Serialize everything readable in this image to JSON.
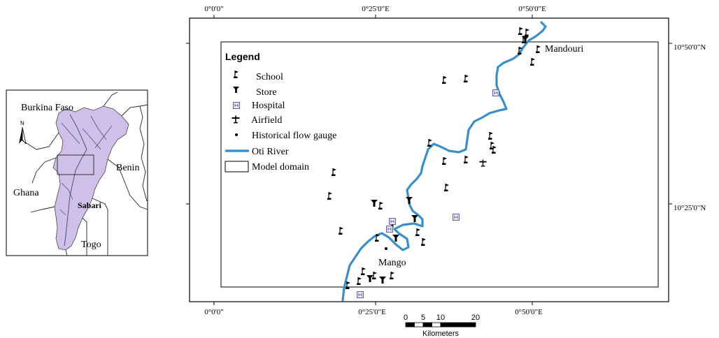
{
  "colors": {
    "river": "#3a8fc8",
    "inset_fill": "#cfc0ea",
    "inset_stream": "#4d4d8c",
    "hospital": "#5a5a9e",
    "frame": "#000000"
  },
  "inset": {
    "labels": {
      "burkina_faso": "Burkina Faso",
      "benin": "Benin",
      "ghana": "Ghana",
      "togo": "Togo",
      "sabari": "Sabari",
      "north": "N"
    }
  },
  "main_map": {
    "top_ticks": [
      "0°0'0\"",
      "0°25'0\"E",
      "0°50'0\"E"
    ],
    "bottom_ticks": [
      "0°0'0\"",
      "0°25'0\"E",
      "0°50'0\"E"
    ],
    "right_ticks": [
      "10°50'0\"N",
      "10°25'0\"N"
    ],
    "place_labels": {
      "mandouri": "Mandouri",
      "mango": "Mango"
    },
    "legend": {
      "title": "Legend",
      "items": {
        "school": "School",
        "store": "Store",
        "hospital": "Hospital",
        "airfield": "Airfield",
        "gauge": "Historical flow gauge",
        "river": "Oti River",
        "domain": "Model domain"
      }
    },
    "scale_bar": {
      "ticks": [
        "0",
        "5",
        "10",
        "20"
      ],
      "unit": "Kilometers"
    }
  }
}
